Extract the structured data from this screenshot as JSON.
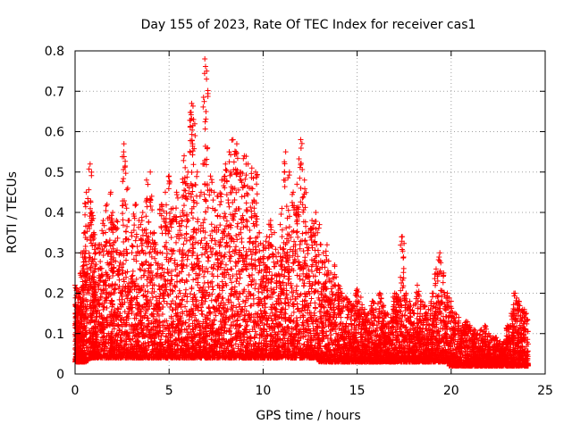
{
  "chart_data": {
    "type": "scatter",
    "title": "Day 155 of 2023, Rate Of TEC Index for receiver cas1",
    "xlabel": "GPS time / hours",
    "ylabel": "ROTI / TECUs",
    "xlim": [
      0,
      25
    ],
    "ylim": [
      0,
      0.8
    ],
    "x_ticks": [
      0,
      5,
      10,
      15,
      20,
      25
    ],
    "x_tick_labels": [
      "0",
      "5",
      "10",
      "15",
      "20",
      "25"
    ],
    "y_ticks": [
      0,
      0.1,
      0.2,
      0.3,
      0.4,
      0.5,
      0.6,
      0.7,
      0.8
    ],
    "y_tick_labels": [
      "0",
      "0.1",
      "0.2",
      "0.3",
      "0.4",
      "0.5",
      "0.6",
      "0.7",
      "0.8"
    ],
    "grid": true,
    "marker": "+",
    "marker_color": "#ff0000",
    "series": [
      {
        "x": [
          0.0,
          0.1,
          0.2,
          0.3,
          0.4,
          0.5,
          0.6,
          0.8,
          0.9,
          1.0,
          1.1,
          1.3,
          1.5,
          1.7,
          1.9,
          2.0,
          2.2,
          2.4,
          2.6,
          2.8,
          3.0,
          3.2,
          3.4,
          3.6,
          3.8,
          4.0,
          4.2,
          4.4,
          4.6,
          4.8,
          5.0,
          5.2,
          5.4,
          5.6,
          5.8,
          6.0,
          6.2,
          6.3,
          6.5,
          6.7,
          6.9,
          7.0,
          7.2,
          7.4,
          7.6,
          7.8,
          8.0,
          8.2,
          8.4,
          8.6,
          8.8,
          9.0,
          9.2,
          9.4,
          9.6,
          9.8,
          10.0,
          10.2,
          10.4,
          10.6,
          10.8,
          11.0,
          11.2,
          11.4,
          11.6,
          11.8,
          12.0,
          12.2,
          12.4,
          12.6,
          12.8,
          13.0,
          13.2,
          13.4,
          13.6,
          13.8,
          14.0,
          14.2,
          14.4,
          14.6,
          14.8,
          15.0,
          15.2,
          15.4,
          15.6,
          15.8,
          16.0,
          16.2,
          16.4,
          16.6,
          16.8,
          17.0,
          17.2,
          17.4,
          17.6,
          17.8,
          18.0,
          18.2,
          18.4,
          18.6,
          18.8,
          19.0,
          19.2,
          19.4,
          19.6,
          19.8,
          20.0,
          20.2,
          20.4,
          20.6,
          20.8,
          21.0,
          21.2,
          21.4,
          21.6,
          21.8,
          22.0,
          22.2,
          22.4,
          22.6,
          22.8,
          23.0,
          23.2,
          23.4,
          23.6,
          23.8,
          24.0
        ],
        "y_min": [
          0.03,
          0.03,
          0.03,
          0.03,
          0.03,
          0.03,
          0.03,
          0.04,
          0.04,
          0.04,
          0.04,
          0.04,
          0.04,
          0.04,
          0.04,
          0.04,
          0.04,
          0.04,
          0.04,
          0.04,
          0.04,
          0.04,
          0.04,
          0.04,
          0.04,
          0.04,
          0.04,
          0.04,
          0.04,
          0.04,
          0.04,
          0.04,
          0.04,
          0.04,
          0.04,
          0.04,
          0.04,
          0.04,
          0.04,
          0.04,
          0.04,
          0.04,
          0.04,
          0.04,
          0.04,
          0.04,
          0.04,
          0.04,
          0.04,
          0.04,
          0.04,
          0.04,
          0.04,
          0.04,
          0.04,
          0.04,
          0.04,
          0.04,
          0.04,
          0.04,
          0.04,
          0.04,
          0.04,
          0.04,
          0.04,
          0.04,
          0.04,
          0.04,
          0.04,
          0.04,
          0.04,
          0.03,
          0.03,
          0.03,
          0.03,
          0.03,
          0.03,
          0.03,
          0.03,
          0.03,
          0.03,
          0.03,
          0.03,
          0.03,
          0.03,
          0.03,
          0.03,
          0.03,
          0.03,
          0.03,
          0.03,
          0.03,
          0.03,
          0.03,
          0.03,
          0.03,
          0.03,
          0.03,
          0.03,
          0.03,
          0.03,
          0.03,
          0.03,
          0.03,
          0.03,
          0.03,
          0.02,
          0.02,
          0.02,
          0.02,
          0.02,
          0.02,
          0.02,
          0.02,
          0.02,
          0.02,
          0.02,
          0.02,
          0.02,
          0.02,
          0.02,
          0.02,
          0.02,
          0.02,
          0.02,
          0.02,
          0.02
        ],
        "y_max": [
          0.22,
          0.21,
          0.2,
          0.25,
          0.3,
          0.35,
          0.45,
          0.52,
          0.4,
          0.35,
          0.3,
          0.32,
          0.38,
          0.42,
          0.45,
          0.4,
          0.38,
          0.3,
          0.57,
          0.46,
          0.35,
          0.42,
          0.38,
          0.4,
          0.48,
          0.5,
          0.35,
          0.3,
          0.42,
          0.45,
          0.49,
          0.41,
          0.45,
          0.39,
          0.54,
          0.5,
          0.67,
          0.63,
          0.5,
          0.45,
          0.78,
          0.75,
          0.49,
          0.45,
          0.44,
          0.48,
          0.52,
          0.55,
          0.58,
          0.57,
          0.5,
          0.54,
          0.52,
          0.51,
          0.5,
          0.35,
          0.32,
          0.34,
          0.38,
          0.35,
          0.3,
          0.41,
          0.55,
          0.5,
          0.45,
          0.47,
          0.58,
          0.48,
          0.35,
          0.38,
          0.4,
          0.37,
          0.3,
          0.32,
          0.25,
          0.27,
          0.22,
          0.2,
          0.19,
          0.18,
          0.17,
          0.21,
          0.19,
          0.16,
          0.15,
          0.18,
          0.16,
          0.2,
          0.17,
          0.15,
          0.14,
          0.2,
          0.19,
          0.34,
          0.2,
          0.18,
          0.17,
          0.22,
          0.18,
          0.17,
          0.16,
          0.2,
          0.26,
          0.3,
          0.25,
          0.2,
          0.18,
          0.15,
          0.14,
          0.12,
          0.13,
          0.12,
          0.11,
          0.1,
          0.11,
          0.12,
          0.1,
          0.09,
          0.09,
          0.08,
          0.08,
          0.12,
          0.15,
          0.2,
          0.18,
          0.16,
          0.15
        ]
      }
    ]
  }
}
